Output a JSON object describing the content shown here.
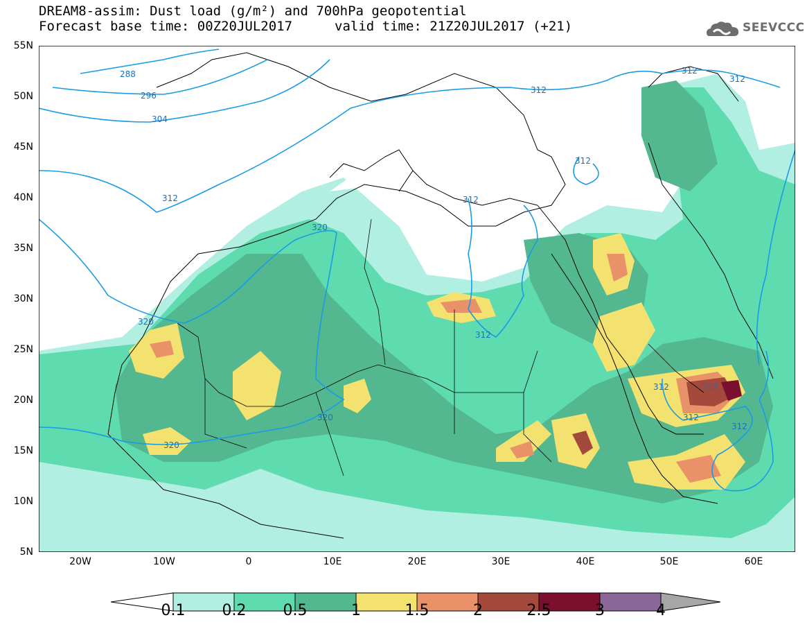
{
  "header": {
    "title_line1": "DREAM8-assim: Dust load (g/m²) and 700hPa geopotential",
    "base_label": "Forecast base time: 00Z20JUL2017",
    "valid_label": "valid time: 21Z20JUL2017 (+21)"
  },
  "logo": {
    "text": "SEEVCCC",
    "icon": "cloud-logo-icon"
  },
  "axes": {
    "lat_labels": [
      "55N",
      "50N",
      "45N",
      "40N",
      "35N",
      "30N",
      "25N",
      "20N",
      "15N",
      "10N",
      "5N"
    ],
    "lon_labels": [
      "20W",
      "10W",
      "0",
      "10E",
      "20E",
      "30E",
      "40E",
      "50E",
      "60E"
    ]
  },
  "contour_labels": [
    "288",
    "296",
    "304",
    "312",
    "312",
    "312",
    "312",
    "312",
    "320",
    "320",
    "320",
    "320",
    "312",
    "312",
    "312",
    "312",
    "312",
    "312"
  ],
  "legend": {
    "ticks": [
      "0.1",
      "0.2",
      "0.5",
      "1",
      "1.5",
      "2",
      "2.5",
      "3",
      "4"
    ],
    "colors": [
      "#ffffff",
      "#b2efe3",
      "#5edcb0",
      "#53b88f",
      "#f3e26f",
      "#e9926a",
      "#a34a3c",
      "#7a0f2e",
      "#8b6898",
      "#a6a6a6"
    ]
  }
}
